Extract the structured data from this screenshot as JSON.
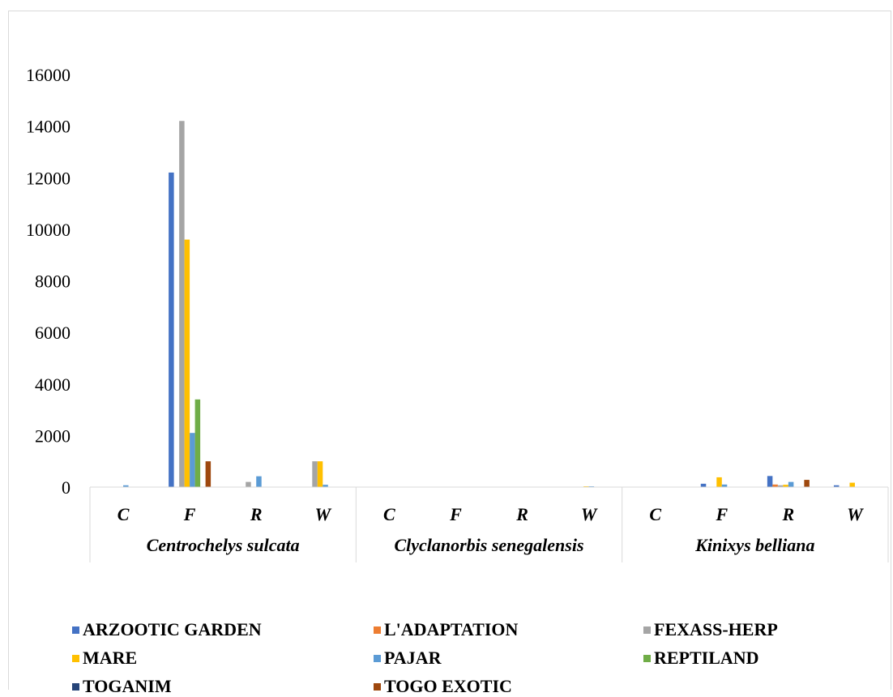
{
  "chart_data": {
    "type": "bar",
    "title": "",
    "xlabel": "",
    "ylabel": "",
    "ylim": [
      0,
      16000
    ],
    "yticks": [
      0,
      2000,
      4000,
      6000,
      8000,
      10000,
      12000,
      14000,
      16000
    ],
    "grid": false,
    "legend_position": "bottom",
    "groups": [
      {
        "label": "Centrochelys sulcata",
        "categories": [
          "C",
          "F",
          "R",
          "W"
        ]
      },
      {
        "label": "Clyclanorbis senegalensis",
        "categories": [
          "C",
          "F",
          "R",
          "W"
        ]
      },
      {
        "label": "Kinixys belliana",
        "categories": [
          "C",
          "F",
          "R",
          "W"
        ]
      }
    ],
    "series": [
      {
        "name": "ARZOOTIC GARDEN",
        "color": "#4472c4",
        "values": [
          0,
          12200,
          0,
          0,
          0,
          0,
          0,
          0,
          0,
          130,
          430,
          70
        ]
      },
      {
        "name": "L'ADAPTATION",
        "color": "#ed7d31",
        "values": [
          0,
          0,
          0,
          0,
          0,
          0,
          0,
          0,
          0,
          0,
          100,
          0
        ]
      },
      {
        "name": "FEXASS-HERP",
        "color": "#a5a5a5",
        "values": [
          0,
          14200,
          200,
          1000,
          0,
          0,
          0,
          0,
          0,
          0,
          70,
          0
        ]
      },
      {
        "name": "MARE",
        "color": "#ffc000",
        "values": [
          0,
          9600,
          0,
          1000,
          0,
          0,
          0,
          30,
          0,
          380,
          90,
          170
        ]
      },
      {
        "name": "PAJAR",
        "color": "#5b9bd5",
        "values": [
          70,
          2100,
          420,
          90,
          0,
          0,
          0,
          30,
          0,
          100,
          200,
          0
        ]
      },
      {
        "name": "REPTILAND",
        "color": "#70ad47",
        "values": [
          0,
          3400,
          0,
          0,
          0,
          0,
          0,
          0,
          0,
          0,
          0,
          0
        ]
      },
      {
        "name": "TOGANIM",
        "color": "#264478",
        "values": [
          0,
          0,
          0,
          0,
          0,
          0,
          0,
          0,
          0,
          0,
          0,
          0
        ]
      },
      {
        "name": "TOGO EXOTIC",
        "color": "#9e480e",
        "values": [
          0,
          1000,
          0,
          0,
          0,
          0,
          0,
          0,
          0,
          0,
          280,
          0
        ]
      }
    ]
  }
}
